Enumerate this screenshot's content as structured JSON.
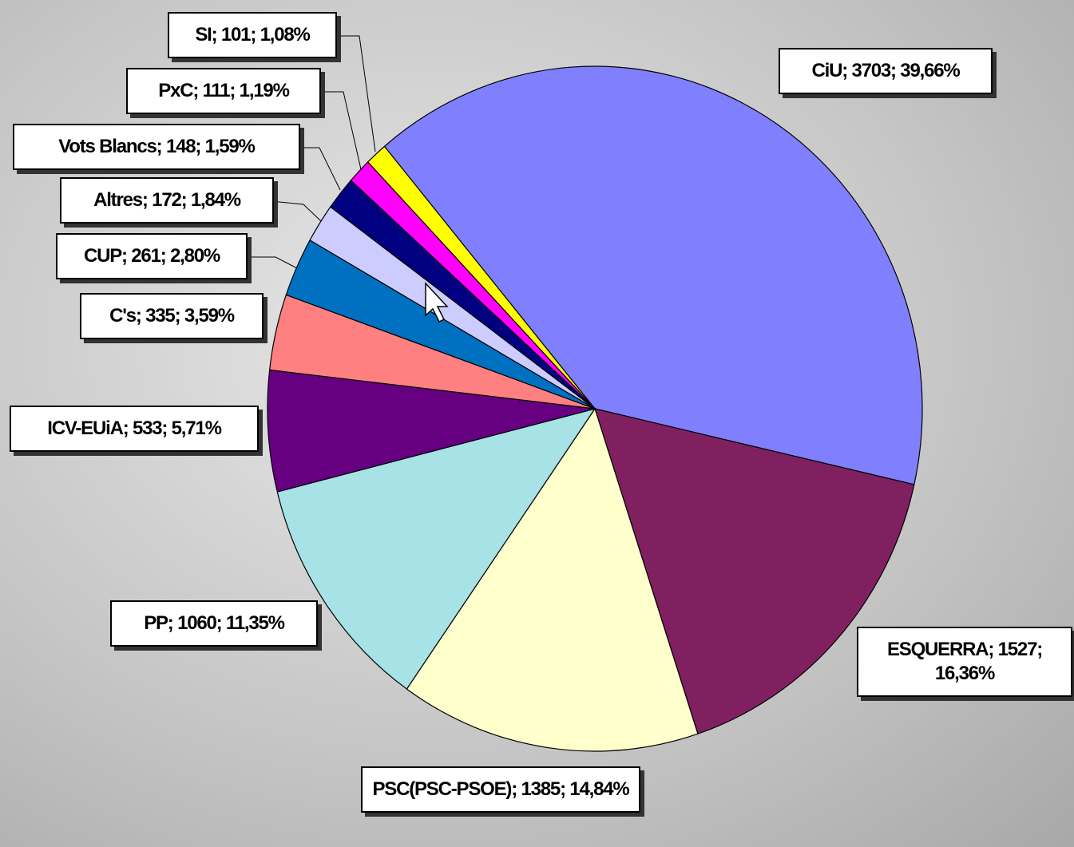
{
  "chart_data": {
    "type": "pie",
    "values": [
      3703,
      1527,
      1385,
      1060,
      533,
      335,
      261,
      172,
      148,
      111,
      101
    ],
    "value_labels": [
      "CiU; 3703; 39,66%",
      "ESQUERRA; 1527; 16,36%",
      "PSC(PSC-PSOE); 1385; 14,84%",
      "PP; 1060; 11,35%",
      "ICV-EUiA; 533; 5,71%",
      "C's; 335; 3,59%",
      "CUP; 261; 2,80%",
      "Altres; 172; 1,84%",
      "Vots Blancs; 148; 1,59%",
      "PxC; 111; 1,19%",
      "SI; 101; 1,08%"
    ],
    "colors": [
      "#8080ff",
      "#802060",
      "#ffffcc",
      "#a6e2e6",
      "#660080",
      "#ff8080",
      "#0070c0",
      "#ccccff",
      "#000080",
      "#ff00ff",
      "#ffff00"
    ]
  }
}
